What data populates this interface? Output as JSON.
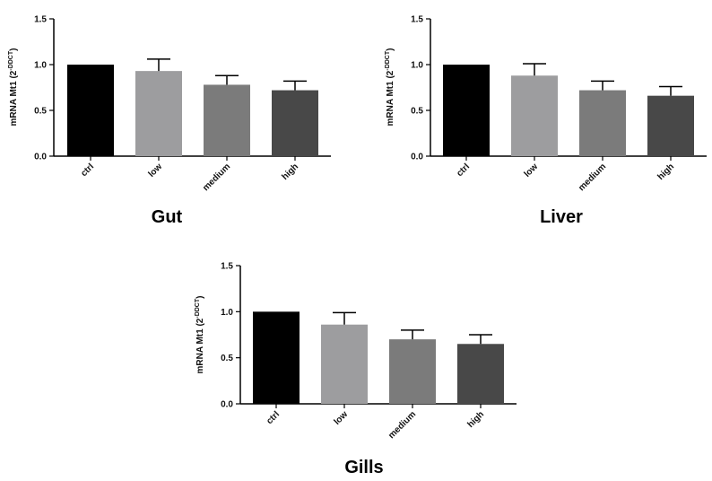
{
  "chart_data": [
    {
      "type": "bar",
      "title": "Gut",
      "ylabel_main": "mRNA Mt1 (2",
      "ylabel_sup": "-DDCT",
      "ylabel_close": ")",
      "categories": [
        "ctrl",
        "low",
        "medium",
        "high"
      ],
      "values": [
        1.0,
        0.93,
        0.78,
        0.72
      ],
      "errors": [
        0.0,
        0.13,
        0.1,
        0.1
      ],
      "bar_colors": [
        "#000000",
        "#9d9d9f",
        "#7b7b7b",
        "#484848"
      ],
      "ylim": [
        0,
        1.5
      ],
      "yticks": [
        "0.0",
        "0.5",
        "1.0",
        "1.5"
      ],
      "grid": false
    },
    {
      "type": "bar",
      "title": "Liver",
      "ylabel_main": "mRNA Mt1 (2",
      "ylabel_sup": "-DDCT",
      "ylabel_close": ")",
      "categories": [
        "ctrl",
        "low",
        "medium",
        "high"
      ],
      "values": [
        1.0,
        0.88,
        0.72,
        0.66
      ],
      "errors": [
        0.0,
        0.13,
        0.1,
        0.1
      ],
      "bar_colors": [
        "#000000",
        "#9d9d9f",
        "#7b7b7b",
        "#484848"
      ],
      "ylim": [
        0,
        1.5
      ],
      "yticks": [
        "0.0",
        "0.5",
        "1.0",
        "1.5"
      ],
      "grid": false
    },
    {
      "type": "bar",
      "title": "Gills",
      "ylabel_main": "mRNA Mt1 (2",
      "ylabel_sup": "-DDCT",
      "ylabel_close": ")",
      "categories": [
        "ctrl",
        "low",
        "medium",
        "high"
      ],
      "values": [
        1.0,
        0.86,
        0.7,
        0.65
      ],
      "errors": [
        0.0,
        0.13,
        0.1,
        0.1
      ],
      "bar_colors": [
        "#000000",
        "#9d9d9f",
        "#7b7b7b",
        "#484848"
      ],
      "ylim": [
        0,
        1.5
      ],
      "yticks": [
        "0.0",
        "0.5",
        "1.0",
        "1.5"
      ],
      "grid": false
    }
  ]
}
